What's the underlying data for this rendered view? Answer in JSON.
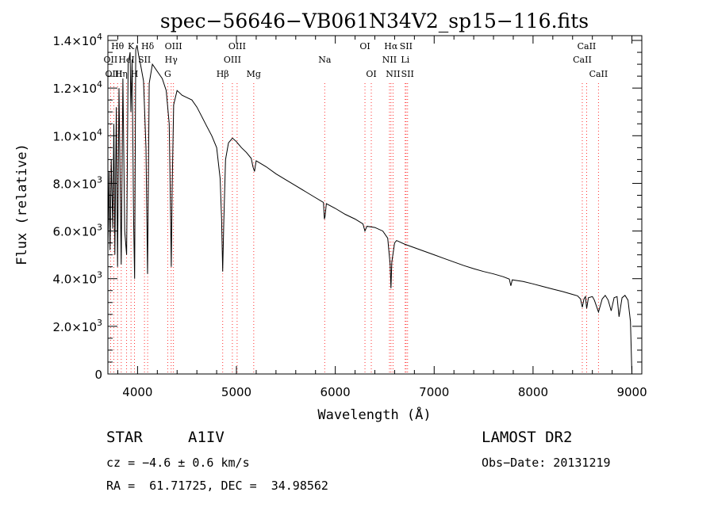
{
  "chart_data": {
    "type": "line",
    "title": "spec−56646−VB061N34V2_sp15−116.fits",
    "xlabel": "Wavelength (Å)",
    "ylabel": "Flux (relative)",
    "xlim": [
      3700,
      9100
    ],
    "ylim": [
      0,
      14200
    ],
    "x_ticks": [
      4000,
      5000,
      6000,
      7000,
      8000,
      9000
    ],
    "x_tick_labels": [
      "4000",
      "5000",
      "6000",
      "7000",
      "8000",
      "9000"
    ],
    "y_ticks": [
      0,
      2000,
      4000,
      6000,
      8000,
      10000,
      12000,
      14000
    ],
    "y_tick_labels": [
      {
        "mant": "0",
        "exp": ""
      },
      {
        "mant": "2.0×10",
        "exp": "3"
      },
      {
        "mant": "4.0×10",
        "exp": "3"
      },
      {
        "mant": "6.0×10",
        "exp": "3"
      },
      {
        "mant": "8.0×10",
        "exp": "3"
      },
      {
        "mant": "1.0×10",
        "exp": "4"
      },
      {
        "mant": "1.2×10",
        "exp": "4"
      },
      {
        "mant": "1.4×10",
        "exp": "4"
      }
    ],
    "series": [
      {
        "name": "spectrum",
        "color": "#000000",
        "points": [
          [
            3700,
            5000
          ],
          [
            3712,
            8500
          ],
          [
            3722,
            5200
          ],
          [
            3734,
            9000
          ],
          [
            3750,
            6100
          ],
          [
            3760,
            10500
          ],
          [
            3771,
            5000
          ],
          [
            3785,
            11200
          ],
          [
            3798,
            4500
          ],
          [
            3812,
            12000
          ],
          [
            3835,
            4600
          ],
          [
            3852,
            12400
          ],
          [
            3870,
            6000
          ],
          [
            3889,
            5000
          ],
          [
            3905,
            13000
          ],
          [
            3925,
            13500
          ],
          [
            3933,
            11000
          ],
          [
            3945,
            13200
          ],
          [
            3960,
            6500
          ],
          [
            3970,
            4000
          ],
          [
            3982,
            13600
          ],
          [
            3995,
            13800
          ],
          [
            4010,
            13400
          ],
          [
            4030,
            13000
          ],
          [
            4060,
            12300
          ],
          [
            4085,
            9500
          ],
          [
            4101,
            4200
          ],
          [
            4118,
            12200
          ],
          [
            4150,
            13000
          ],
          [
            4200,
            12700
          ],
          [
            4250,
            12400
          ],
          [
            4290,
            11900
          ],
          [
            4320,
            10500
          ],
          [
            4335,
            6500
          ],
          [
            4341,
            4500
          ],
          [
            4350,
            7800
          ],
          [
            4365,
            11300
          ],
          [
            4400,
            11900
          ],
          [
            4450,
            11700
          ],
          [
            4500,
            11600
          ],
          [
            4550,
            11500
          ],
          [
            4600,
            11200
          ],
          [
            4650,
            10800
          ],
          [
            4700,
            10400
          ],
          [
            4750,
            10000
          ],
          [
            4800,
            9500
          ],
          [
            4835,
            8200
          ],
          [
            4850,
            6500
          ],
          [
            4861,
            4300
          ],
          [
            4872,
            6400
          ],
          [
            4890,
            9000
          ],
          [
            4920,
            9700
          ],
          [
            4960,
            9900
          ],
          [
            5000,
            9750
          ],
          [
            5050,
            9500
          ],
          [
            5100,
            9300
          ],
          [
            5150,
            9050
          ],
          [
            5167,
            8700
          ],
          [
            5183,
            8500
          ],
          [
            5200,
            8950
          ],
          [
            5300,
            8700
          ],
          [
            5400,
            8400
          ],
          [
            5500,
            8150
          ],
          [
            5600,
            7900
          ],
          [
            5700,
            7650
          ],
          [
            5800,
            7400
          ],
          [
            5880,
            7200
          ],
          [
            5890,
            6500
          ],
          [
            5896,
            6600
          ],
          [
            5910,
            7150
          ],
          [
            6000,
            6950
          ],
          [
            6100,
            6700
          ],
          [
            6200,
            6500
          ],
          [
            6280,
            6300
          ],
          [
            6300,
            6000
          ],
          [
            6320,
            6200
          ],
          [
            6400,
            6150
          ],
          [
            6480,
            6000
          ],
          [
            6530,
            5700
          ],
          [
            6555,
            4600
          ],
          [
            6563,
            3600
          ],
          [
            6572,
            4700
          ],
          [
            6600,
            5500
          ],
          [
            6620,
            5600
          ],
          [
            6700,
            5450
          ],
          [
            6800,
            5300
          ],
          [
            6900,
            5150
          ],
          [
            7000,
            5000
          ],
          [
            7100,
            4850
          ],
          [
            7200,
            4700
          ],
          [
            7300,
            4550
          ],
          [
            7400,
            4420
          ],
          [
            7500,
            4300
          ],
          [
            7600,
            4200
          ],
          [
            7700,
            4080
          ],
          [
            7760,
            3980
          ],
          [
            7775,
            3700
          ],
          [
            7790,
            3950
          ],
          [
            7900,
            3880
          ],
          [
            8000,
            3780
          ],
          [
            8100,
            3670
          ],
          [
            8200,
            3560
          ],
          [
            8300,
            3460
          ],
          [
            8400,
            3340
          ],
          [
            8450,
            3280
          ],
          [
            8480,
            3150
          ],
          [
            8498,
            2800
          ],
          [
            8515,
            3150
          ],
          [
            8530,
            3250
          ],
          [
            8542,
            2750
          ],
          [
            8560,
            3200
          ],
          [
            8600,
            3250
          ],
          [
            8620,
            3100
          ],
          [
            8662,
            2600
          ],
          [
            8700,
            3150
          ],
          [
            8730,
            3300
          ],
          [
            8760,
            3100
          ],
          [
            8790,
            2650
          ],
          [
            8820,
            3200
          ],
          [
            8850,
            3250
          ],
          [
            8870,
            2400
          ],
          [
            8900,
            3200
          ],
          [
            8930,
            3300
          ],
          [
            8960,
            3100
          ],
          [
            8985,
            2200
          ],
          [
            9000,
            0
          ]
        ]
      }
    ],
    "emission_lines": [
      {
        "name": "Hθ",
        "x": 3798,
        "row": 0,
        "color": "#ff3030"
      },
      {
        "name": "OII",
        "x": 3727,
        "row": 1,
        "color": "#ff3030"
      },
      {
        "name": "OIII",
        "x": 3760,
        "row": 2,
        "color": "#ff3030"
      },
      {
        "name": "Hη",
        "x": 3835,
        "row": 2,
        "color": "#ff3030"
      },
      {
        "name": "HeI",
        "x": 3889,
        "row": 1,
        "color": "#ff3030"
      },
      {
        "name": "K",
        "x": 3934,
        "row": 0,
        "color": "#ff3030"
      },
      {
        "name": "SII",
        "x": 4070,
        "row": 1,
        "color": "#ff3030"
      },
      {
        "name": "H",
        "x": 3969,
        "row": 2,
        "color": "#ff3030"
      },
      {
        "name": "Hδ",
        "x": 4102,
        "row": 0,
        "color": "#ff3030"
      },
      {
        "name": "OIII",
        "x": 4363,
        "row": 0,
        "color": "#ff3030"
      },
      {
        "name": "Hγ",
        "x": 4340,
        "row": 1,
        "color": "#ff3030"
      },
      {
        "name": "G",
        "x": 4305,
        "row": 2,
        "color": "#ff3030"
      },
      {
        "name": "Hβ",
        "x": 4861,
        "row": 2,
        "color": "#ff3030"
      },
      {
        "name": "OIII",
        "x": 5007,
        "row": 0,
        "color": "#ff3030"
      },
      {
        "name": "OIII",
        "x": 4959,
        "row": 1,
        "color": "#ff3030"
      },
      {
        "name": "Mg",
        "x": 5175,
        "row": 2,
        "color": "#ff3030"
      },
      {
        "name": "Na",
        "x": 5893,
        "row": 1,
        "color": "#ff3030"
      },
      {
        "name": "OI",
        "x": 6300,
        "row": 0,
        "color": "#ff3030"
      },
      {
        "name": "OI",
        "x": 6364,
        "row": 2,
        "color": "#ff3030"
      },
      {
        "name": "Hα",
        "x": 6563,
        "row": 0,
        "color": "#ff3030"
      },
      {
        "name": "SII",
        "x": 6716,
        "row": 0,
        "color": "#ff3030"
      },
      {
        "name": "NII",
        "x": 6548,
        "row": 1,
        "color": "#ff3030"
      },
      {
        "name": "Li",
        "x": 6707,
        "row": 1,
        "color": "#ff3030"
      },
      {
        "name": "NII",
        "x": 6584,
        "row": 2,
        "color": "#ff3030"
      },
      {
        "name": "SII",
        "x": 6731,
        "row": 2,
        "color": "#ff3030"
      },
      {
        "name": "CaII",
        "x": 8542,
        "row": 0,
        "color": "#ff3030"
      },
      {
        "name": "CaII",
        "x": 8498,
        "row": 1,
        "color": "#ff3030"
      },
      {
        "name": "CaII",
        "x": 8662,
        "row": 2,
        "color": "#ff3030"
      }
    ]
  },
  "info": {
    "class": "STAR",
    "subclass": "A1IV",
    "survey": "LAMOST DR2",
    "cz": "cz = −4.6 ± 0.6 km/s",
    "obs_date": "Obs−Date: 20131219",
    "coords": "RA =  61.71725, DEC =  34.98562"
  }
}
